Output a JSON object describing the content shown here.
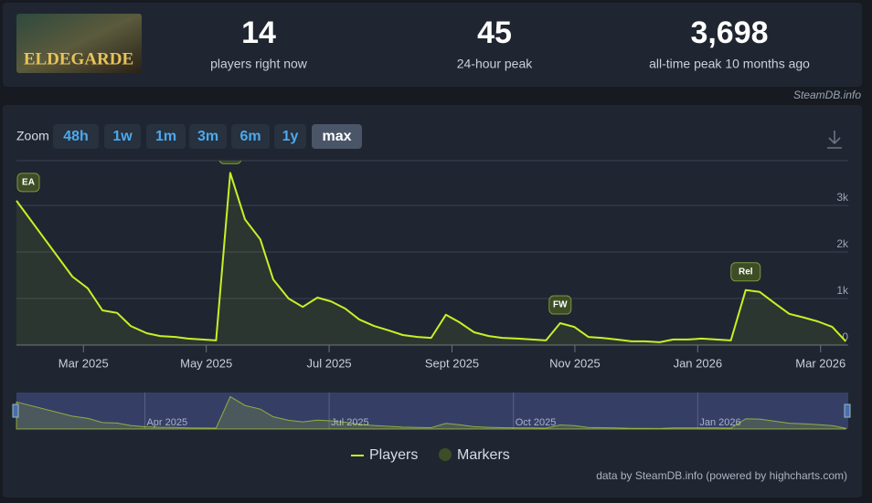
{
  "header": {
    "game_logo_text": "ELDEGARDE",
    "stats": [
      {
        "value": "14",
        "label": "players right now"
      },
      {
        "value": "45",
        "label": "24-hour peak"
      },
      {
        "value": "3,698",
        "label": "all-time peak 10 months ago"
      }
    ]
  },
  "source": "SteamDB.info",
  "zoom": {
    "label": "Zoom",
    "buttons": [
      "48h",
      "1w",
      "1m",
      "3m",
      "6m",
      "1y",
      "max"
    ],
    "active": 6
  },
  "chart_data": {
    "type": "line",
    "x": [
      0.91,
      1.82,
      2.07,
      2.31,
      2.55,
      2.77,
      3.03,
      3.25,
      3.5,
      3.7,
      4.16,
      4.39,
      4.63,
      4.88,
      5.09,
      5.34,
      5.57,
      5.81,
      6.03,
      6.26,
      6.49,
      6.73,
      6.97,
      7.2,
      7.44,
      7.66,
      7.9,
      8.12,
      8.36,
      8.6,
      8.82,
      9.07,
      9.3,
      9.53,
      9.76,
      9.99,
      10.22,
      10.44,
      10.68,
      10.92,
      11.14,
      11.38,
      11.6,
      11.84,
      12.06,
      12.3,
      12.54,
      12.78,
      13.01,
      13.25,
      13.49,
      13.73,
      13.95,
      14.19,
      14.41
    ],
    "series": [
      {
        "name": "Players",
        "color": "#c8f026",
        "values": [
          3100,
          1470,
          1220,
          745,
          690,
          410,
          255,
          195,
          175,
          140,
          100,
          3698,
          2700,
          2270,
          1410,
          1000,
          820,
          1020,
          940,
          785,
          550,
          410,
          315,
          215,
          175,
          155,
          650,
          490,
          275,
          195,
          155,
          140,
          120,
          100,
          470,
          390,
          175,
          155,
          120,
          80,
          80,
          60,
          120,
          120,
          140,
          120,
          100,
          1180,
          1140,
          900,
          670,
          590,
          510,
          390,
          80
        ]
      }
    ],
    "markers": {
      "name": "Markers",
      "color": "#3d4d26",
      "items": [
        {
          "label": "EA",
          "x": 0.91
        },
        {
          "x": 4.39
        },
        {
          "label": "FW",
          "x": 9.76
        },
        {
          "label": "Rel",
          "x": 12.78
        }
      ]
    },
    "xlim": [
      0.91,
      14.45
    ],
    "xticks": [
      {
        "value": 2,
        "label": "Mar 2025"
      },
      {
        "value": 4,
        "label": "May 2025"
      },
      {
        "value": 6,
        "label": "Jul 2025"
      },
      {
        "value": 8,
        "label": "Sept 2025"
      },
      {
        "value": 10,
        "label": "Nov 2025"
      },
      {
        "value": 12,
        "label": "Jan 2026"
      },
      {
        "value": 14,
        "label": "Mar 2026"
      }
    ],
    "ylim": [
      0,
      3960
    ],
    "yticks": [
      0,
      {
        "value": 1000,
        "label": "1k"
      },
      {
        "value": 2000,
        "label": "2k"
      },
      {
        "value": 3000,
        "label": "3k"
      }
    ],
    "grid": true,
    "navigator_xticks": [
      {
        "value": 3,
        "label": "Apr 2025"
      },
      {
        "value": 6,
        "label": "Jul 2025"
      },
      {
        "value": 9,
        "label": "Oct 2025"
      },
      {
        "value": 12,
        "label": "Jan 2026"
      }
    ],
    "credit": "data by SteamDB.info (powered by highcharts.com)"
  }
}
